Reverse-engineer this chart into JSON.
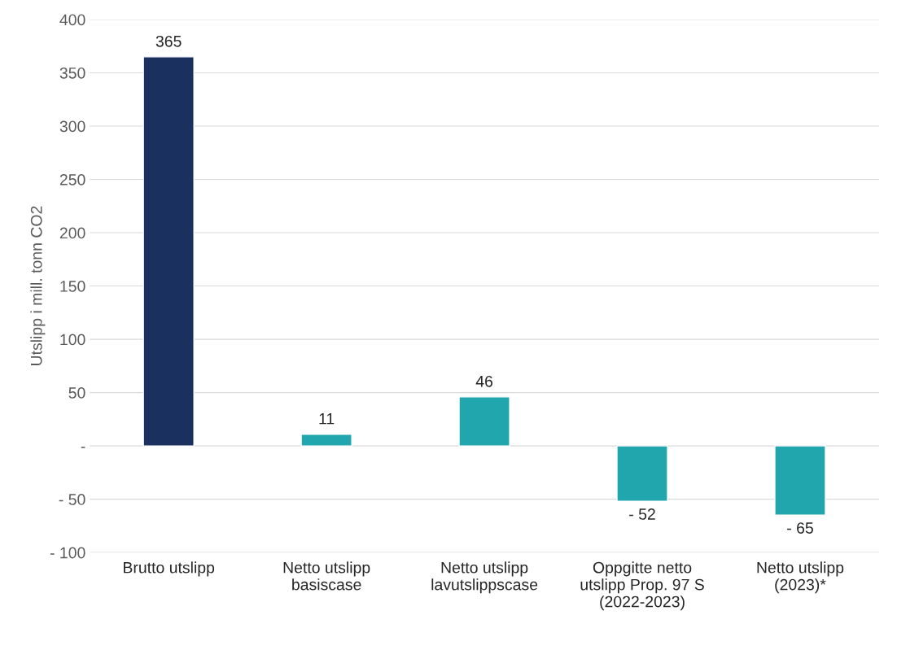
{
  "chart_data": {
    "type": "bar",
    "ylabel": "Utslipp i mill. tonn CO2",
    "categories": [
      "Brutto utslipp",
      "Netto utslipp\nbasiscase",
      "Netto utslipp\nlavutslippscase",
      "Oppgitte netto\nutslipp Prop. 97 S\n(2022-2023)",
      "Netto utslipp\n(2023)*"
    ],
    "values": [
      365,
      11,
      46,
      -52,
      -65
    ],
    "colors": [
      "#1a3160",
      "#22a6ad",
      "#22a6ad",
      "#22a6ad",
      "#22a6ad"
    ],
    "value_labels": [
      "365",
      "11",
      "46",
      "- 52",
      "- 65"
    ],
    "ylim": [
      -100,
      400
    ],
    "yticks": [
      {
        "value": -100,
        "label": "- 100"
      },
      {
        "value": -50,
        "label": "- 50"
      },
      {
        "value": 0,
        "label": "-"
      },
      50,
      100,
      150,
      200,
      250,
      300,
      350,
      400
    ],
    "grid": "y"
  }
}
